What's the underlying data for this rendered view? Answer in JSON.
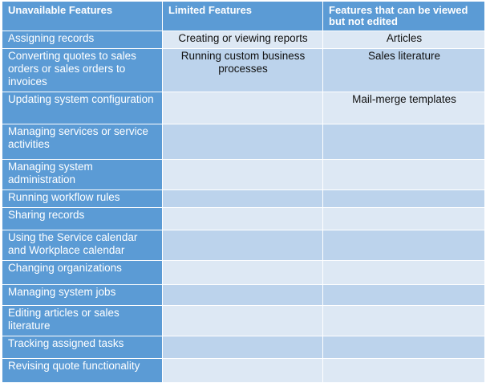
{
  "table": {
    "header": [
      "Unavailable Features",
      "Limited Features",
      "Features that can be viewed but not edited"
    ],
    "rows": [
      [
        "Assigning records",
        "Creating or viewing reports",
        "Articles"
      ],
      [
        "Converting quotes to sales orders or sales orders to invoices",
        "Running custom business processes",
        "Sales literature"
      ],
      [
        "Updating system configuration",
        null,
        "Mail-merge templates"
      ],
      [
        "Managing services or service activities",
        null,
        null
      ],
      [
        "Managing system administration",
        null,
        null
      ],
      [
        "Running workflow rules",
        null,
        null
      ],
      [
        "Sharing records",
        null,
        null
      ],
      [
        "Using the Service calendar and Workplace calendar",
        null,
        null
      ],
      [
        "Changing organizations",
        null,
        null
      ],
      [
        "Managing system jobs",
        null,
        null
      ],
      [
        "Editing articles or sales literature",
        null,
        null
      ],
      [
        "Tracking assigned tasks",
        null,
        null
      ],
      [
        "Revising quote functionality",
        null,
        null
      ]
    ]
  }
}
